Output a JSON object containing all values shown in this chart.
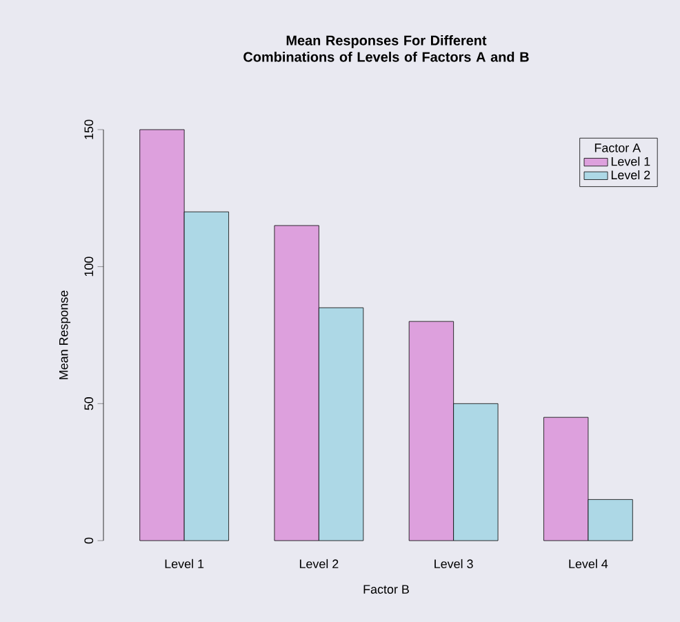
{
  "chart_data": {
    "type": "bar",
    "title": "Mean Responses For Different Combinations of Levels of Factors A and B",
    "xlabel": "Factor B",
    "ylabel": "Mean Response",
    "legend_title": "Factor A",
    "categories": [
      "Level 1",
      "Level 2",
      "Level 3",
      "Level 4"
    ],
    "series": [
      {
        "name": "Level 1",
        "color": "#dda0dd",
        "values": [
          150,
          115,
          80,
          45
        ]
      },
      {
        "name": "Level 2",
        "color": "#add8e6",
        "values": [
          120,
          85,
          50,
          15
        ]
      }
    ],
    "ylim": [
      0,
      150
    ],
    "yticks": [
      0,
      50,
      100,
      150
    ],
    "grid": false,
    "legend": "top right"
  }
}
